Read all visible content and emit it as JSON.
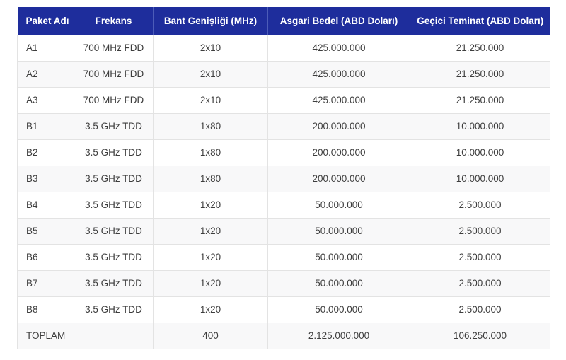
{
  "chart_data": {
    "type": "table",
    "columns": [
      "Paket Adı",
      "Frekans",
      "Bant Genişliği (MHz)",
      "Asgari Bedel (ABD Doları)",
      "Geçici Teminat (ABD Doları)"
    ],
    "rows": [
      [
        "A1",
        "700 MHz FDD",
        "2x10",
        "425.000.000",
        "21.250.000"
      ],
      [
        "A2",
        "700 MHz FDD",
        "2x10",
        "425.000.000",
        "21.250.000"
      ],
      [
        "A3",
        "700 MHz FDD",
        "2x10",
        "425.000.000",
        "21.250.000"
      ],
      [
        "B1",
        "3.5 GHz TDD",
        "1x80",
        "200.000.000",
        "10.000.000"
      ],
      [
        "B2",
        "3.5 GHz TDD",
        "1x80",
        "200.000.000",
        "10.000.000"
      ],
      [
        "B3",
        "3.5 GHz TDD",
        "1x80",
        "200.000.000",
        "10.000.000"
      ],
      [
        "B4",
        "3.5 GHz TDD",
        "1x20",
        "50.000.000",
        "2.500.000"
      ],
      [
        "B5",
        "3.5 GHz TDD",
        "1x20",
        "50.000.000",
        "2.500.000"
      ],
      [
        "B6",
        "3.5 GHz TDD",
        "1x20",
        "50.000.000",
        "2.500.000"
      ],
      [
        "B7",
        "3.5 GHz TDD",
        "1x20",
        "50.000.000",
        "2.500.000"
      ],
      [
        "B8",
        "3.5 GHz TDD",
        "1x20",
        "50.000.000",
        "2.500.000"
      ],
      [
        "TOPLAM",
        "",
        "400",
        "2.125.000.000",
        "106.250.000"
      ]
    ],
    "total_row_label": "TOPLAM",
    "legend_position": "none",
    "grid": true
  },
  "colors": {
    "header_bg": "#1e2d9c",
    "header_divider": "#4c5cb8",
    "header_text": "#ffffff",
    "border": "#e3e3e3",
    "stripe": "#f8f8f9",
    "body_text": "#3d3d3d",
    "page_bg": "#ffffff"
  }
}
